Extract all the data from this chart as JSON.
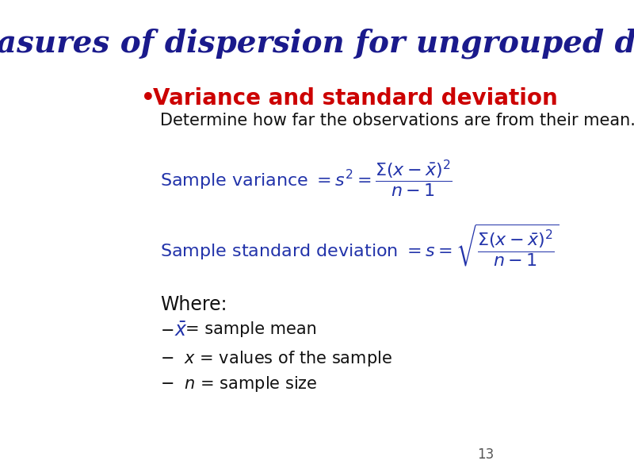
{
  "title": "Measures of dispersion for ungrouped data",
  "title_color": "#1a1a8c",
  "title_fontsize": 28,
  "bullet_text": "Variance and standard deviation",
  "bullet_color": "#cc0000",
  "bullet_fontsize": 20,
  "subtitle_text": "Determine how far the observations are from their mean.",
  "subtitle_fontsize": 15,
  "formula_color": "#2233aa",
  "where_fontsize": 17,
  "bullet_item_fontsize": 15,
  "page_number": "13",
  "bg_color": "#ffffff"
}
